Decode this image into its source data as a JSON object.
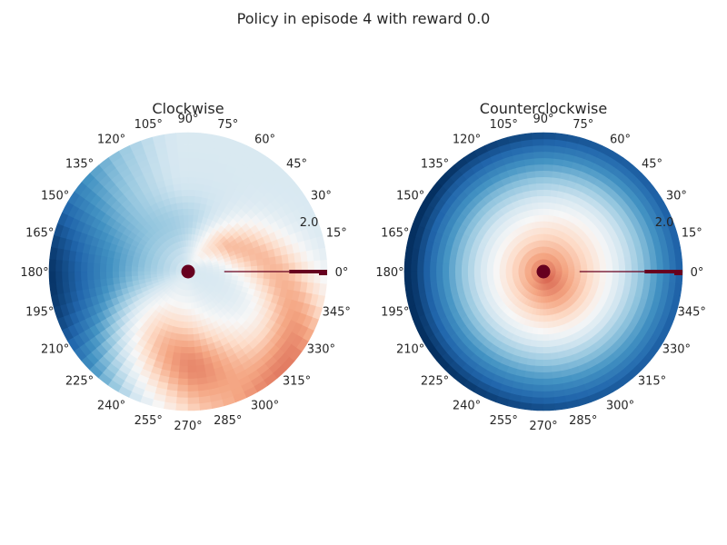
{
  "figure": {
    "suptitle": "Policy in episode 4 with reward 0.0"
  },
  "chart_data": [
    {
      "type": "heatmap",
      "projection": "polar",
      "title": "Clockwise",
      "theta_tick_labels": [
        "0°",
        "15°",
        "30°",
        "45°",
        "60°",
        "75°",
        "90°",
        "105°",
        "120°",
        "135°",
        "150°",
        "165°",
        "180°",
        "195°",
        "210°",
        "225°",
        "240°",
        "255°",
        "270°",
        "285°",
        "300°",
        "315°",
        "330°",
        "345°"
      ],
      "radial_tick_labels": [
        "2.0"
      ],
      "colormap": "RdBu_r",
      "rlim": [
        0,
        2.2
      ],
      "goal_marker": {
        "theta_deg": 0,
        "r_range": [
          1.6,
          2.2
        ],
        "color": "#67001f"
      },
      "center_marker": {
        "color": "#67001f"
      }
    },
    {
      "type": "heatmap",
      "projection": "polar",
      "title": "Counterclockwise",
      "theta_tick_labels": [
        "0°",
        "15°",
        "30°",
        "45°",
        "60°",
        "75°",
        "90°",
        "105°",
        "120°",
        "135°",
        "150°",
        "165°",
        "180°",
        "195°",
        "210°",
        "225°",
        "240°",
        "255°",
        "270°",
        "285°",
        "300°",
        "315°",
        "330°",
        "345°"
      ],
      "radial_tick_labels": [
        "2.0"
      ],
      "colormap": "RdBu_r",
      "rlim": [
        0,
        2.2
      ],
      "goal_marker": {
        "theta_deg": 0,
        "r_range": [
          1.6,
          2.2
        ],
        "color": "#67001f"
      },
      "center_marker": {
        "color": "#67001f"
      }
    }
  ]
}
